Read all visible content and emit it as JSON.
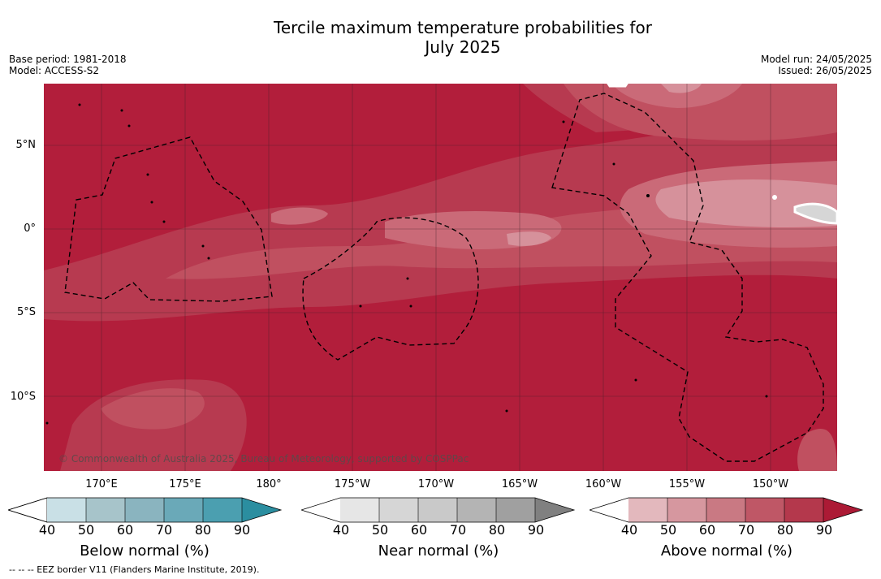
{
  "title_line1": "Tercile maximum temperature probabilities for",
  "title_line2": "July 2025",
  "meta_left": {
    "base_period": "Base period: 1981-2018",
    "model": "Model: ACCESS-S2"
  },
  "meta_right": {
    "model_run": "Model run: 24/05/2025",
    "issued": "Issued: 26/05/2025"
  },
  "lat_labels": [
    "5°N",
    "0°",
    "5°S",
    "10°S"
  ],
  "lon_labels": [
    "170°E",
    "175°E",
    "180°",
    "175°W",
    "170°W",
    "165°W",
    "160°W",
    "155°W",
    "150°W"
  ],
  "copyright": "© Commonwealth of Australia 2025, Bureau of Meteorology, supported by COSPPac",
  "colorbars": [
    {
      "title": "Below normal (%)",
      "ticks": [
        "40",
        "50",
        "60",
        "70",
        "80",
        "90"
      ],
      "colors": [
        "#c9e0e6",
        "#a7c4ca",
        "#8ab4bf",
        "#6aa9b8",
        "#4b9fb0",
        "#2b8ea0"
      ]
    },
    {
      "title": "Near normal (%)",
      "ticks": [
        "40",
        "50",
        "60",
        "70",
        "80",
        "90"
      ],
      "colors": [
        "#e6e6e6",
        "#d6d6d6",
        "#c9c9c9",
        "#b4b4b4",
        "#a0a0a0",
        "#808080"
      ]
    },
    {
      "title": "Above normal (%)",
      "ticks": [
        "40",
        "50",
        "60",
        "70",
        "80",
        "90"
      ],
      "colors": [
        "#e3b8bd",
        "#d6979f",
        "#c97983",
        "#bf5766",
        "#b4384c",
        "#ac1a35"
      ]
    }
  ],
  "map_colors": {
    "c90": "#b21e3b",
    "c80": "#b73a50",
    "c70": "#c05060",
    "c60": "#ca6a78",
    "c50": "#d6919b",
    "near": "#d6d6d6"
  },
  "footnote": "--  --  -- EEZ border V11 (Flanders Marine Institute, 2019)."
}
